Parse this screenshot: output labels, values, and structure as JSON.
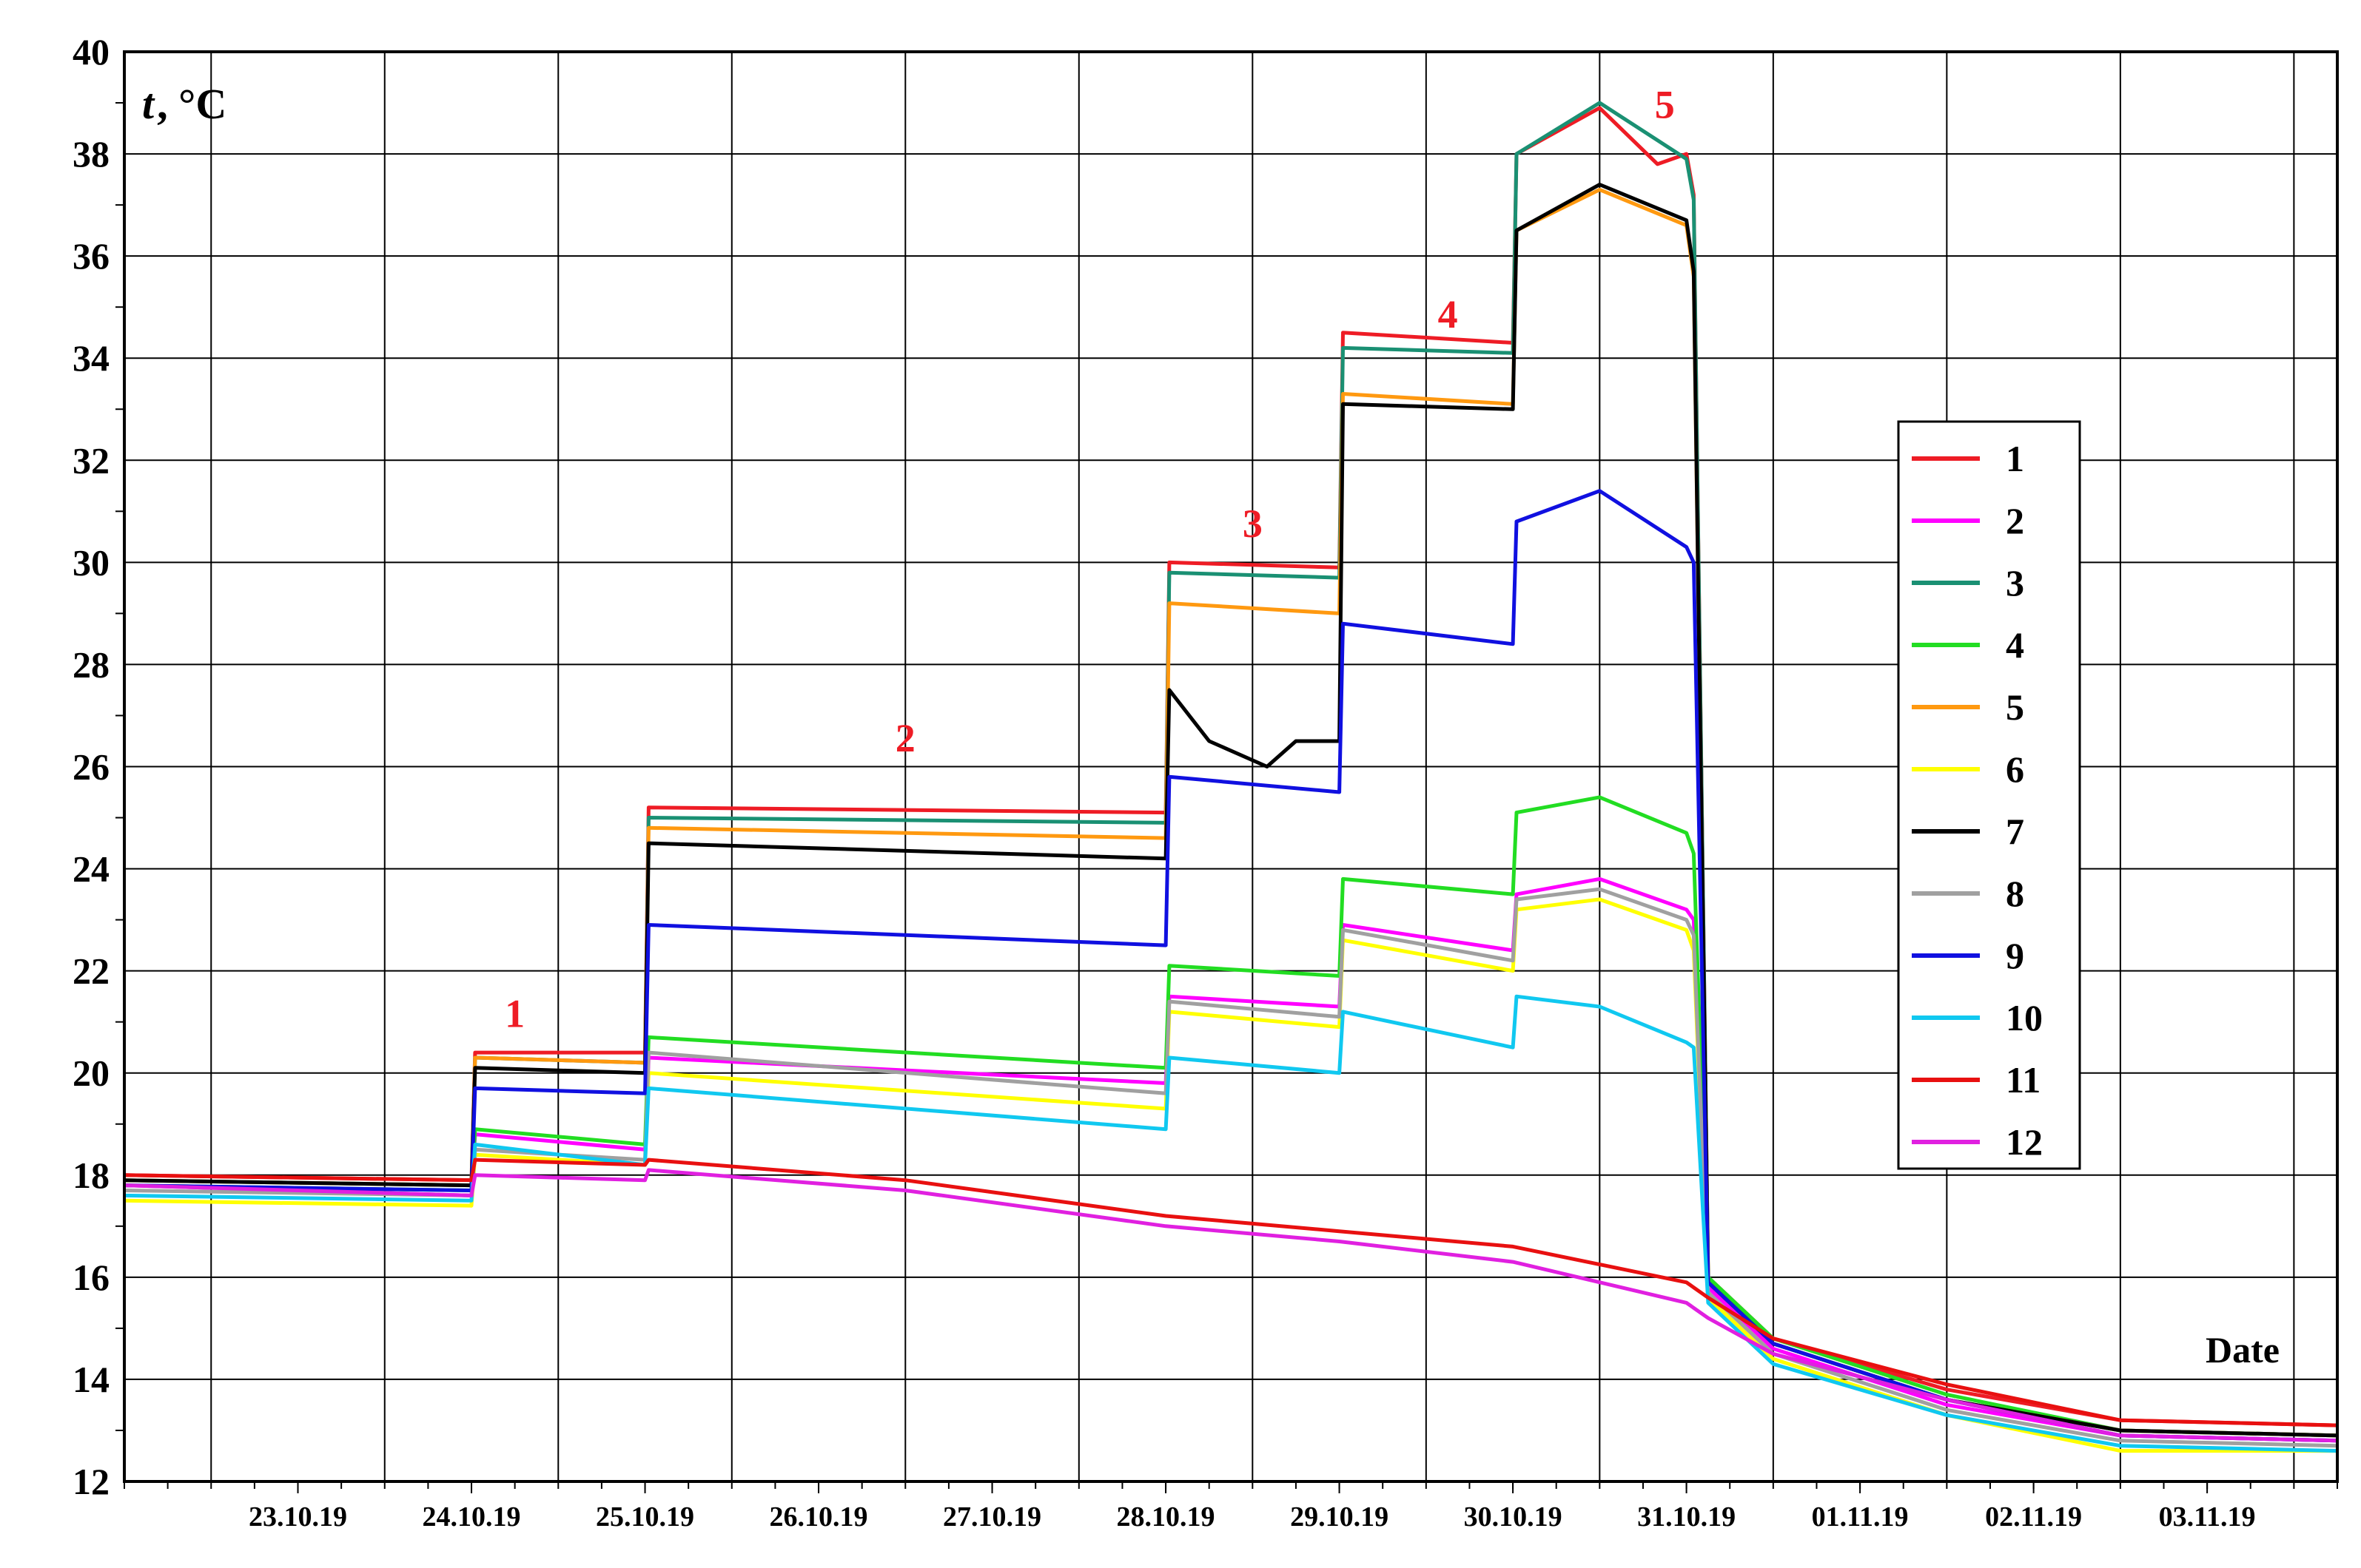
{
  "chart_data": {
    "type": "line",
    "xlabel": "Date",
    "ylabel_main": "t",
    "ylabel_unit": ", °C",
    "ylim": [
      12,
      40
    ],
    "yticks": [
      12,
      14,
      16,
      18,
      20,
      22,
      24,
      26,
      28,
      30,
      32,
      34,
      36,
      38,
      40
    ],
    "x_categories": [
      "23.10.19",
      "24.10.19",
      "25.10.19",
      "26.10.19",
      "27.10.19",
      "28.10.19",
      "29.10.19",
      "30.10.19",
      "31.10.19",
      "01.11.19",
      "02.11.19",
      "03.11.19"
    ],
    "grid": true,
    "legend_position": "right",
    "annotations": [
      {
        "text": "1",
        "x": "24.10.19 18:00",
        "y": 20.9
      },
      {
        "text": "2",
        "x": "27.10.19 00:00",
        "y": 26.3
      },
      {
        "text": "3",
        "x": "29.10.19 00:00",
        "y": 30.5
      },
      {
        "text": "4",
        "x": "30.10.19 03:00",
        "y": 34.6
      },
      {
        "text": "5",
        "x": "31.10.19 09:00",
        "y": 38.7
      }
    ],
    "series": [
      {
        "name": "1",
        "color": "#ee1c25",
        "points": [
          [
            "22.10.19 12:00",
            18.0
          ],
          [
            "24.10.19 12:00",
            17.9
          ],
          [
            "24.10.19 12:30",
            20.4
          ],
          [
            "25.10.19 12:00",
            20.4
          ],
          [
            "25.10.19 12:30",
            25.2
          ],
          [
            "28.10.19 12:00",
            25.1
          ],
          [
            "28.10.19 12:30",
            30.0
          ],
          [
            "29.10.19 12:00",
            29.9
          ],
          [
            "29.10.19 12:30",
            34.5
          ],
          [
            "30.10.19 12:00",
            34.3
          ],
          [
            "30.10.19 12:30",
            38.0
          ],
          [
            "31.10.19 00:00",
            38.9
          ],
          [
            "31.10.19 08:00",
            37.8
          ],
          [
            "31.10.19 12:00",
            38.0
          ],
          [
            "31.10.19 13:00",
            37.2
          ],
          [
            "31.10.19 15:00",
            16.0
          ],
          [
            "01.11.19 00:00",
            14.8
          ],
          [
            "02.11.19 00:00",
            13.8
          ],
          [
            "03.11.19 00:00",
            13.2
          ],
          [
            "04.11.19 06:00",
            13.1
          ]
        ]
      },
      {
        "name": "2",
        "color": "#ff00ff",
        "points": [
          [
            "22.10.19 12:00",
            17.8
          ],
          [
            "24.10.19 12:00",
            17.6
          ],
          [
            "24.10.19 12:30",
            18.8
          ],
          [
            "25.10.19 12:00",
            18.5
          ],
          [
            "25.10.19 12:30",
            20.3
          ],
          [
            "28.10.19 12:00",
            19.8
          ],
          [
            "28.10.19 12:30",
            21.5
          ],
          [
            "29.10.19 12:00",
            21.3
          ],
          [
            "29.10.19 12:30",
            22.9
          ],
          [
            "30.10.19 12:00",
            22.4
          ],
          [
            "30.10.19 12:30",
            23.5
          ],
          [
            "31.10.19 00:00",
            23.8
          ],
          [
            "31.10.19 12:00",
            23.2
          ],
          [
            "31.10.19 13:00",
            23.0
          ],
          [
            "31.10.19 15:00",
            15.8
          ],
          [
            "01.11.19 00:00",
            14.6
          ],
          [
            "02.11.19 00:00",
            13.5
          ],
          [
            "03.11.19 00:00",
            12.9
          ],
          [
            "04.11.19 06:00",
            12.8
          ]
        ]
      },
      {
        "name": "3",
        "color": "#1a9073",
        "points": [
          [
            "22.10.19 12:00",
            17.9
          ],
          [
            "24.10.19 12:00",
            17.8
          ],
          [
            "24.10.19 12:30",
            20.3
          ],
          [
            "25.10.19 12:00",
            20.2
          ],
          [
            "25.10.19 12:30",
            25.0
          ],
          [
            "28.10.19 12:00",
            24.9
          ],
          [
            "28.10.19 12:30",
            29.8
          ],
          [
            "29.10.19 12:00",
            29.7
          ],
          [
            "29.10.19 12:30",
            34.2
          ],
          [
            "30.10.19 12:00",
            34.1
          ],
          [
            "30.10.19 12:30",
            38.0
          ],
          [
            "31.10.19 00:00",
            39.0
          ],
          [
            "31.10.19 12:00",
            37.9
          ],
          [
            "31.10.19 13:00",
            37.1
          ],
          [
            "31.10.19 15:00",
            16.0
          ],
          [
            "01.11.19 00:00",
            14.7
          ],
          [
            "02.11.19 00:00",
            13.6
          ],
          [
            "03.11.19 00:00",
            13.0
          ],
          [
            "04.11.19 06:00",
            12.9
          ]
        ]
      },
      {
        "name": "4",
        "color": "#22dd22",
        "points": [
          [
            "22.10.19 12:00",
            17.8
          ],
          [
            "24.10.19 12:00",
            17.7
          ],
          [
            "24.10.19 12:30",
            18.9
          ],
          [
            "25.10.19 12:00",
            18.6
          ],
          [
            "25.10.19 12:30",
            20.7
          ],
          [
            "28.10.19 12:00",
            20.1
          ],
          [
            "28.10.19 12:30",
            22.1
          ],
          [
            "29.10.19 12:00",
            21.9
          ],
          [
            "29.10.19 12:30",
            23.8
          ],
          [
            "30.10.19 12:00",
            23.5
          ],
          [
            "30.10.19 12:30",
            25.1
          ],
          [
            "31.10.19 00:00",
            25.4
          ],
          [
            "31.10.19 12:00",
            24.7
          ],
          [
            "31.10.19 13:00",
            24.3
          ],
          [
            "31.10.19 15:00",
            16.0
          ],
          [
            "01.11.19 00:00",
            14.8
          ],
          [
            "02.11.19 00:00",
            13.7
          ],
          [
            "03.11.19 00:00",
            13.0
          ],
          [
            "04.11.19 06:00",
            12.9
          ]
        ]
      },
      {
        "name": "5",
        "color": "#ff9910",
        "points": [
          [
            "22.10.19 12:00",
            17.9
          ],
          [
            "24.10.19 12:00",
            17.8
          ],
          [
            "24.10.19 12:30",
            20.3
          ],
          [
            "25.10.19 12:00",
            20.2
          ],
          [
            "25.10.19 12:30",
            24.8
          ],
          [
            "28.10.19 12:00",
            24.6
          ],
          [
            "28.10.19 12:30",
            29.2
          ],
          [
            "29.10.19 12:00",
            29.0
          ],
          [
            "29.10.19 12:30",
            33.3
          ],
          [
            "30.10.19 12:00",
            33.1
          ],
          [
            "30.10.19 12:30",
            36.5
          ],
          [
            "31.10.19 00:00",
            37.3
          ],
          [
            "31.10.19 12:00",
            36.6
          ],
          [
            "31.10.19 13:00",
            35.6
          ],
          [
            "31.10.19 15:00",
            15.9
          ],
          [
            "01.11.19 00:00",
            14.7
          ],
          [
            "02.11.19 00:00",
            13.6
          ],
          [
            "03.11.19 00:00",
            13.0
          ],
          [
            "04.11.19 06:00",
            12.9
          ]
        ]
      },
      {
        "name": "6",
        "color": "#ffff00",
        "points": [
          [
            "22.10.19 12:00",
            17.5
          ],
          [
            "24.10.19 12:00",
            17.4
          ],
          [
            "24.10.19 12:30",
            18.4
          ],
          [
            "25.10.19 12:00",
            18.2
          ],
          [
            "25.10.19 12:30",
            20.0
          ],
          [
            "28.10.19 12:00",
            19.3
          ],
          [
            "28.10.19 12:30",
            21.2
          ],
          [
            "29.10.19 12:00",
            20.9
          ],
          [
            "29.10.19 12:30",
            22.6
          ],
          [
            "30.10.19 12:00",
            22.0
          ],
          [
            "30.10.19 12:30",
            23.2
          ],
          [
            "31.10.19 00:00",
            23.4
          ],
          [
            "31.10.19 12:00",
            22.8
          ],
          [
            "31.10.19 13:00",
            22.4
          ],
          [
            "31.10.19 15:00",
            15.6
          ],
          [
            "01.11.19 00:00",
            14.4
          ],
          [
            "02.11.19 00:00",
            13.3
          ],
          [
            "03.11.19 00:00",
            12.6
          ],
          [
            "04.11.19 06:00",
            12.6
          ]
        ]
      },
      {
        "name": "7",
        "color": "#000000",
        "points": [
          [
            "22.10.19 12:00",
            17.9
          ],
          [
            "24.10.19 12:00",
            17.8
          ],
          [
            "24.10.19 12:30",
            20.1
          ],
          [
            "25.10.19 12:00",
            20.0
          ],
          [
            "25.10.19 12:30",
            24.5
          ],
          [
            "28.10.19 12:00",
            24.2
          ],
          [
            "28.10.19 12:30",
            27.5
          ],
          [
            "28.10.19 18:00",
            26.5
          ],
          [
            "29.10.19 02:00",
            26.0
          ],
          [
            "29.10.19 06:00",
            26.5
          ],
          [
            "29.10.19 12:00",
            26.5
          ],
          [
            "29.10.19 12:30",
            33.1
          ],
          [
            "30.10.19 12:00",
            33.0
          ],
          [
            "30.10.19 12:30",
            36.5
          ],
          [
            "31.10.19 00:00",
            37.4
          ],
          [
            "31.10.19 12:00",
            36.7
          ],
          [
            "31.10.19 13:00",
            35.7
          ],
          [
            "31.10.19 15:00",
            15.9
          ],
          [
            "01.11.19 00:00",
            14.7
          ],
          [
            "02.11.19 00:00",
            13.6
          ],
          [
            "03.11.19 00:00",
            13.0
          ],
          [
            "04.11.19 06:00",
            12.9
          ]
        ]
      },
      {
        "name": "8",
        "color": "#a0a0a0",
        "points": [
          [
            "22.10.19 12:00",
            17.7
          ],
          [
            "24.10.19 12:00",
            17.6
          ],
          [
            "24.10.19 12:30",
            18.5
          ],
          [
            "25.10.19 12:00",
            18.3
          ],
          [
            "25.10.19 12:30",
            20.4
          ],
          [
            "28.10.19 12:00",
            19.6
          ],
          [
            "28.10.19 12:30",
            21.4
          ],
          [
            "29.10.19 12:00",
            21.1
          ],
          [
            "29.10.19 12:30",
            22.8
          ],
          [
            "30.10.19 12:00",
            22.2
          ],
          [
            "30.10.19 12:30",
            23.4
          ],
          [
            "31.10.19 00:00",
            23.6
          ],
          [
            "31.10.19 12:00",
            23.0
          ],
          [
            "31.10.19 13:00",
            22.7
          ],
          [
            "31.10.19 15:00",
            15.7
          ],
          [
            "01.11.19 00:00",
            14.5
          ],
          [
            "02.11.19 00:00",
            13.4
          ],
          [
            "03.11.19 00:00",
            12.8
          ],
          [
            "04.11.19 06:00",
            12.7
          ]
        ]
      },
      {
        "name": "9",
        "color": "#1010e0",
        "points": [
          [
            "22.10.19 12:00",
            17.8
          ],
          [
            "24.10.19 12:00",
            17.7
          ],
          [
            "24.10.19 12:30",
            19.7
          ],
          [
            "25.10.19 12:00",
            19.6
          ],
          [
            "25.10.19 12:30",
            22.9
          ],
          [
            "28.10.19 12:00",
            22.5
          ],
          [
            "28.10.19 12:30",
            25.8
          ],
          [
            "29.10.19 12:00",
            25.5
          ],
          [
            "29.10.19 12:30",
            28.8
          ],
          [
            "30.10.19 12:00",
            28.4
          ],
          [
            "30.10.19 12:30",
            30.8
          ],
          [
            "31.10.19 00:00",
            31.4
          ],
          [
            "31.10.19 12:00",
            30.3
          ],
          [
            "31.10.19 13:00",
            30.0
          ],
          [
            "31.10.19 15:00",
            15.9
          ],
          [
            "01.11.19 00:00",
            14.7
          ],
          [
            "02.11.19 00:00",
            13.6
          ],
          [
            "03.11.19 00:00",
            12.9
          ],
          [
            "04.11.19 06:00",
            12.8
          ]
        ]
      },
      {
        "name": "10",
        "color": "#10c8f0",
        "points": [
          [
            "22.10.19 12:00",
            17.6
          ],
          [
            "24.10.19 12:00",
            17.5
          ],
          [
            "24.10.19 12:30",
            18.6
          ],
          [
            "25.10.19 12:00",
            18.2
          ],
          [
            "25.10.19 12:30",
            19.7
          ],
          [
            "28.10.19 12:00",
            18.9
          ],
          [
            "28.10.19 12:30",
            20.3
          ],
          [
            "29.10.19 12:00",
            20.0
          ],
          [
            "29.10.19 12:30",
            21.2
          ],
          [
            "30.10.19 12:00",
            20.5
          ],
          [
            "30.10.19 12:30",
            21.5
          ],
          [
            "31.10.19 00:00",
            21.3
          ],
          [
            "31.10.19 12:00",
            20.6
          ],
          [
            "31.10.19 13:00",
            20.5
          ],
          [
            "31.10.19 15:00",
            15.5
          ],
          [
            "01.11.19 00:00",
            14.3
          ],
          [
            "02.11.19 00:00",
            13.3
          ],
          [
            "03.11.19 00:00",
            12.7
          ],
          [
            "04.11.19 06:00",
            12.6
          ]
        ]
      },
      {
        "name": "11",
        "color": "#e81010",
        "points": [
          [
            "22.10.19 12:00",
            18.0
          ],
          [
            "24.10.19 12:00",
            17.9
          ],
          [
            "24.10.19 12:30",
            18.3
          ],
          [
            "25.10.19 12:00",
            18.2
          ],
          [
            "25.10.19 12:30",
            18.3
          ],
          [
            "27.10.19 00:00",
            17.9
          ],
          [
            "28.10.19 12:00",
            17.2
          ],
          [
            "29.10.19 12:00",
            16.9
          ],
          [
            "30.10.19 12:00",
            16.6
          ],
          [
            "31.10.19 12:00",
            15.9
          ],
          [
            "31.10.19 15:00",
            15.6
          ],
          [
            "01.11.19 00:00",
            14.8
          ],
          [
            "02.11.19 00:00",
            13.9
          ],
          [
            "03.11.19 00:00",
            13.2
          ],
          [
            "04.11.19 06:00",
            13.1
          ]
        ]
      },
      {
        "name": "12",
        "color": "#e020e0",
        "points": [
          [
            "22.10.19 12:00",
            17.8
          ],
          [
            "24.10.19 12:00",
            17.6
          ],
          [
            "24.10.19 12:30",
            18.0
          ],
          [
            "25.10.19 12:00",
            17.9
          ],
          [
            "25.10.19 12:30",
            18.1
          ],
          [
            "27.10.19 00:00",
            17.7
          ],
          [
            "28.10.19 12:00",
            17.0
          ],
          [
            "29.10.19 12:00",
            16.7
          ],
          [
            "30.10.19 12:00",
            16.3
          ],
          [
            "31.10.19 12:00",
            15.5
          ],
          [
            "31.10.19 15:00",
            15.2
          ],
          [
            "01.11.19 00:00",
            14.5
          ],
          [
            "02.11.19 00:00",
            13.6
          ],
          [
            "03.11.19 00:00",
            12.9
          ],
          [
            "04.11.19 06:00",
            12.8
          ]
        ]
      }
    ]
  }
}
